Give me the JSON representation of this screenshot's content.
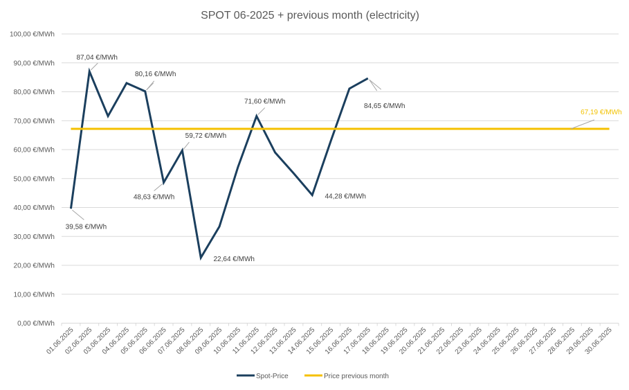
{
  "chart_data": {
    "type": "line",
    "title": "SPOT 06-2025 + previous month (electricity)",
    "xlabel": "",
    "ylabel": "",
    "ylim": [
      0,
      100
    ],
    "y_tick_step": 10,
    "y_tick_labels": [
      "0,00 €/MWh",
      "10,00 €/MWh",
      "20,00 €/MWh",
      "30,00 €/MWh",
      "40,00 €/MWh",
      "50,00 €/MWh",
      "60,00 €/MWh",
      "70,00 €/MWh",
      "80,00 €/MWh",
      "90,00 €/MWh",
      "100,00 €/MWh"
    ],
    "grid": true,
    "legend_position": "bottom",
    "categories": [
      "01.06.2025",
      "02.06.2025",
      "03.06.2025",
      "04.06.2025",
      "05.06.2025",
      "06.06.2025",
      "07.06.2025",
      "08.06.2025",
      "09.06.2025",
      "10.06.2025",
      "11.06.2025",
      "12.06.2025",
      "13.06.2025",
      "14.06.2025",
      "15.06.2025",
      "16.06.2025",
      "17.06.2025",
      "18.06.2025",
      "19.06.2025",
      "20.06.2025",
      "21.06.2025",
      "22.06.2025",
      "23.06.2025",
      "24.06.2025",
      "25.06.2025",
      "26.06.2025",
      "27.06.2025",
      "28.06.2025",
      "29.06.2025",
      "30.06.2025"
    ],
    "series": [
      {
        "name": "Spot-Price",
        "color": "#1b3f5e",
        "values": [
          39.58,
          87.04,
          71.6,
          83.0,
          80.16,
          48.63,
          59.72,
          22.64,
          33.4,
          54.0,
          71.6,
          59.0,
          51.8,
          44.28,
          63.0,
          81.1,
          84.65,
          null,
          null,
          null,
          null,
          null,
          null,
          null,
          null,
          null,
          null,
          null,
          null,
          null
        ],
        "data_labels": [
          {
            "index": 0,
            "text": "39,58 €/MWh",
            "position": "below-right"
          },
          {
            "index": 1,
            "text": "87,04 €/MWh",
            "position": "above"
          },
          {
            "index": 4,
            "text": "80,16 €/MWh",
            "position": "above"
          },
          {
            "index": 5,
            "text": "48,63 €/MWh",
            "position": "below"
          },
          {
            "index": 6,
            "text": "59,72 €/MWh",
            "position": "above-right"
          },
          {
            "index": 7,
            "text": "22,64 €/MWh",
            "position": "right"
          },
          {
            "index": 10,
            "text": "71,60 €/MWh",
            "position": "above"
          },
          {
            "index": 13,
            "text": "44,28 €/MWh",
            "position": "right"
          },
          {
            "index": 16,
            "text": "84,65 €/MWh",
            "position": "below-right"
          }
        ]
      },
      {
        "name": "Price previous month",
        "color": "#f5c000",
        "values": [
          67.19,
          67.19,
          67.19,
          67.19,
          67.19,
          67.19,
          67.19,
          67.19,
          67.19,
          67.19,
          67.19,
          67.19,
          67.19,
          67.19,
          67.19,
          67.19,
          67.19,
          67.19,
          67.19,
          67.19,
          67.19,
          67.19,
          67.19,
          67.19,
          67.19,
          67.19,
          67.19,
          67.19,
          67.19,
          67.19
        ],
        "data_labels": [
          {
            "index": 27,
            "text": "67,19 €/MWh",
            "position": "above-right"
          }
        ]
      }
    ],
    "legend": [
      "Spot-Price",
      "Price previous month"
    ]
  }
}
